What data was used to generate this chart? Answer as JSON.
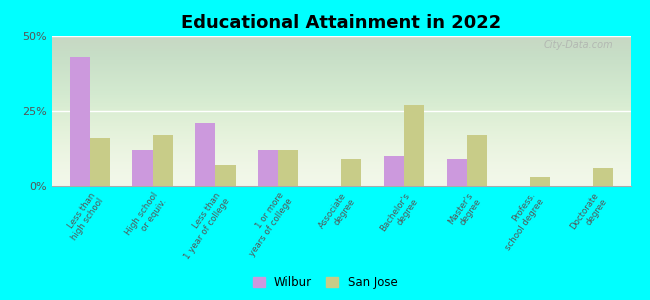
{
  "title": "Educational Attainment in 2022",
  "categories": [
    "Less than\nhigh school",
    "High school\nor equiv.",
    "Less than\n1 year of college",
    "1 or more\nyears of college",
    "Associate\ndegree",
    "Bachelor's\ndegree",
    "Master's\ndegree",
    "Profess.\nschool degree",
    "Doctorate\ndegree"
  ],
  "wilbur": [
    43,
    12,
    21,
    12,
    0,
    10,
    9,
    0,
    0
  ],
  "san_jose": [
    16,
    17,
    7,
    12,
    9,
    27,
    17,
    3,
    6
  ],
  "wilbur_color": "#cc99dd",
  "san_jose_color": "#c8cc88",
  "background_outer": "#00ffff",
  "ylim": [
    0,
    50
  ],
  "yticks": [
    0,
    25,
    50
  ],
  "ytick_labels": [
    "0%",
    "25%",
    "50%"
  ],
  "bar_width": 0.32,
  "legend_labels": [
    "Wilbur",
    "San Jose"
  ],
  "watermark": "City-Data.com"
}
